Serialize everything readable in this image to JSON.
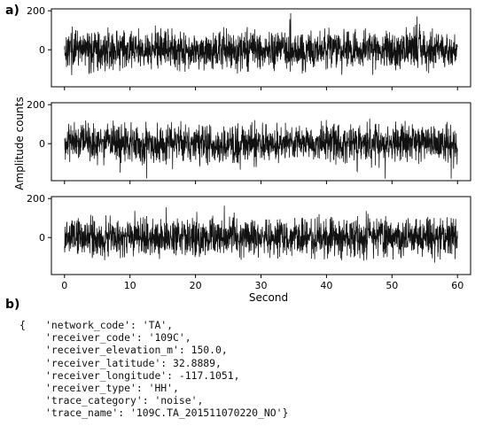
{
  "panel_labels": {
    "a": "a)",
    "b": "b)"
  },
  "chart_data": {
    "type": "line",
    "panels": 3,
    "xlabel": "Second",
    "ylabel": "Amplitude counts",
    "xlim": [
      -2,
      62
    ],
    "ylim": [
      -190,
      210
    ],
    "xticks": [
      0,
      10,
      20,
      30,
      40,
      50,
      60
    ],
    "yticks": [
      0,
      200
    ],
    "series_color": "#111111",
    "signal": "stationary noise, roughly ±100 counts with peaks near ±190, spanning 0 to 60 s"
  },
  "metadata": {
    "open_brace": "{",
    "lines": [
      "'network_code': 'TA',",
      "'receiver_code': '109C',",
      "'receiver_elevation_m': 150.0,",
      "'receiver_latitude': 32.8889,",
      "'receiver_longitude': -117.1051,",
      "'receiver_type': 'HH',",
      "'trace_category': 'noise',",
      "'trace_name': '109C.TA_201511070220_NO'}"
    ]
  }
}
